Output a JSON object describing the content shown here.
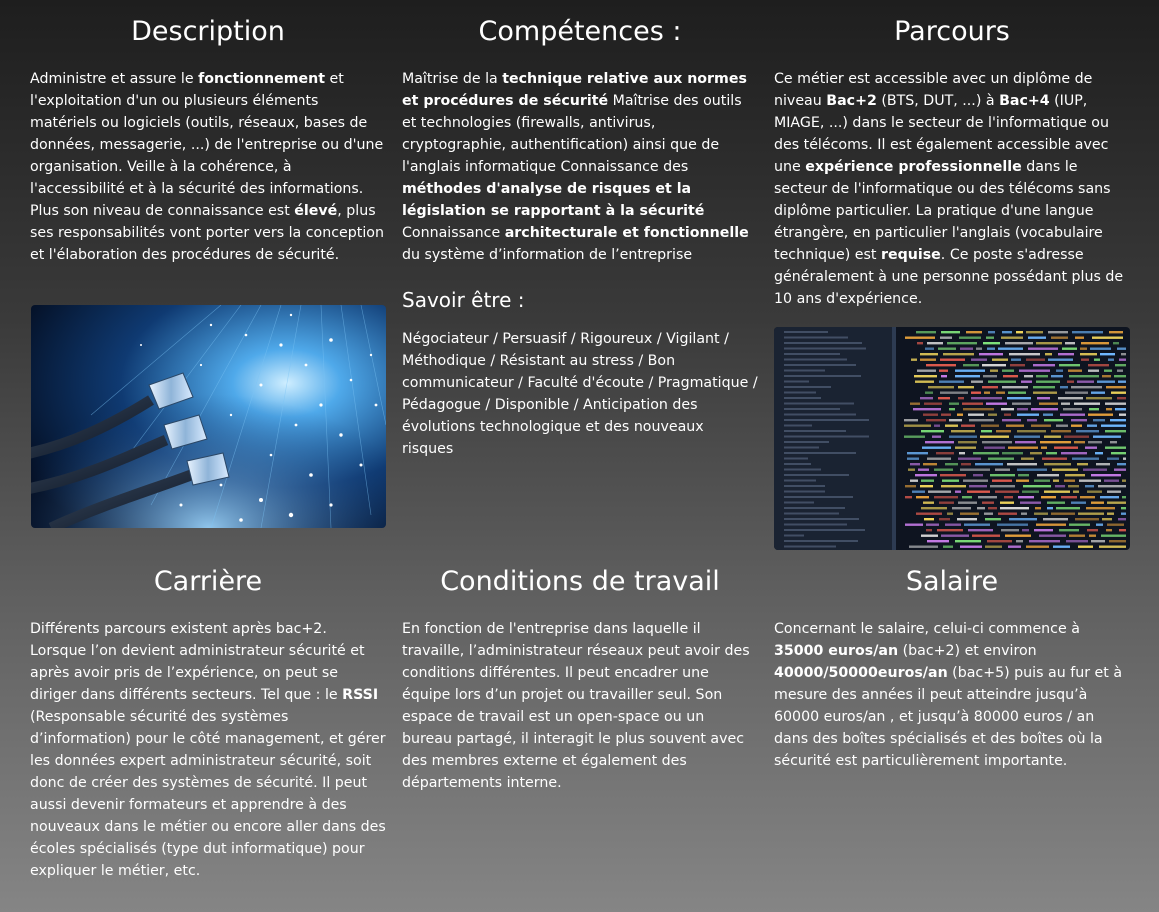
{
  "description": {
    "title": "Description",
    "segments": [
      {
        "t": "Administre et assure le ",
        "b": false
      },
      {
        "t": "fonctionnement",
        "b": true
      },
      {
        "t": " et l'exploitation d'un ou plusieurs éléments matériels ou logiciels (outils, réseaux, bases de données, messagerie, ...) de l'entreprise ou d'une organisation. Veille à la cohérence, à l'accessibilité et à la sécurité des informations. Plus son niveau de connaissance est ",
        "b": false
      },
      {
        "t": "élevé",
        "b": true
      },
      {
        "t": ", plus ses responsabilités vont porter vers la conception et l'élaboration des procédures de sécurité.",
        "b": false
      }
    ]
  },
  "competences": {
    "title": "Compétences :",
    "segments": [
      {
        "t": "Maîtrise de la ",
        "b": false
      },
      {
        "t": "technique relative aux normes et procédures de sécurité",
        "b": true
      },
      {
        "t": " Maîtrise des outils et technologies (firewalls, antivirus, cryptographie, authentification) ainsi que de l'anglais informatique Connaissance des ",
        "b": false
      },
      {
        "t": "méthodes d'analyse de risques et la législation se rapportant à la sécurité",
        "b": true
      },
      {
        "t": " Connaissance ",
        "b": false
      },
      {
        "t": "architecturale et fonctionnelle",
        "b": true
      },
      {
        "t": " du système d’information de l’entreprise",
        "b": false
      }
    ]
  },
  "savoir_etre": {
    "title": "Savoir être :",
    "text": "Négociateur / Persuasif / Rigoureux / Vigilant / Méthodique / Résistant au stress / Bon communicateur / Faculté d'écoute / Pragmatique / Pédagogue / Disponible / Anticipation des évolutions technologique et des nouveaux risques"
  },
  "parcours": {
    "title": "Parcours",
    "segments": [
      {
        "t": "Ce métier est accessible avec un diplôme de niveau ",
        "b": false
      },
      {
        "t": "Bac+2",
        "b": true
      },
      {
        "t": " (BTS, DUT, ...) à ",
        "b": false
      },
      {
        "t": "Bac+4",
        "b": true
      },
      {
        "t": " (IUP, MIAGE, ...) dans le secteur de l'informatique ou des télécoms. Il est également accessible avec une ",
        "b": false
      },
      {
        "t": "expérience professionnelle",
        "b": true
      },
      {
        "t": " dans le secteur de l'informatique ou des télécoms sans diplôme particulier. La pratique d'une langue étrangère, en particulier l'anglais (vocabulaire technique) est ",
        "b": false
      },
      {
        "t": "requise",
        "b": true
      },
      {
        "t": ". Ce poste s'adresse généralement à une personne possédant plus de 10 ans d'expérience.",
        "b": false
      }
    ]
  },
  "carriere": {
    "title": "Carrière",
    "segments": [
      {
        "t": "Différents parcours existent après bac+2. Lorsque l’on devient administrateur sécurité et après avoir pris de l’expérience, on peut se diriger dans différents secteurs. Tel que : le ",
        "b": false
      },
      {
        "t": "RSSI",
        "b": true
      },
      {
        "t": " (Responsable sécurité des systèmes d’information) pour le côté management, et gérer les données expert administrateur sécurité, soit donc de créer des systèmes de sécurité. Il peut aussi devenir formateurs et apprendre à des nouveaux dans le métier ou encore aller dans des écoles spécialisés (type dut informatique) pour expliquer le métier, etc.",
        "b": false
      }
    ]
  },
  "conditions": {
    "title": "Conditions de travail",
    "segments": [
      {
        "t": "En fonction de l'entreprise dans laquelle il travaille, l’administrateur réseaux peut avoir des conditions différentes. Il peut encadrer une équipe lors d’un projet ou travailler seul. Son espace de travail est un open-space ou un bureau partagé, il interagit le plus souvent avec des membres externe et également des départements interne.",
        "b": false
      }
    ]
  },
  "salaire": {
    "title": "Salaire",
    "segments": [
      {
        "t": "Concernant le salaire, celui-ci commence à ",
        "b": false
      },
      {
        "t": "35000 euros/an",
        "b": true
      },
      {
        "t": " (bac+2) et environ ",
        "b": false
      },
      {
        "t": "40000/50000euros/an",
        "b": true
      },
      {
        "t": " (bac+5) puis au fur et à mesure des années il peut atteindre jusqu’à 60000 euros/an , et jusqu’à 80000 euros / an dans des boîtes spécialisés et des boîtes où la sécurité est particulièrement importante.",
        "b": false
      }
    ]
  },
  "images": {
    "fiber_cables": "fiber-optic-network-cables-photo",
    "code_screen": "programming-code-screen-photo"
  },
  "colors": {
    "text": "#ffffff",
    "bg_top": "#1e1e1e",
    "bg_bottom": "#858585"
  }
}
